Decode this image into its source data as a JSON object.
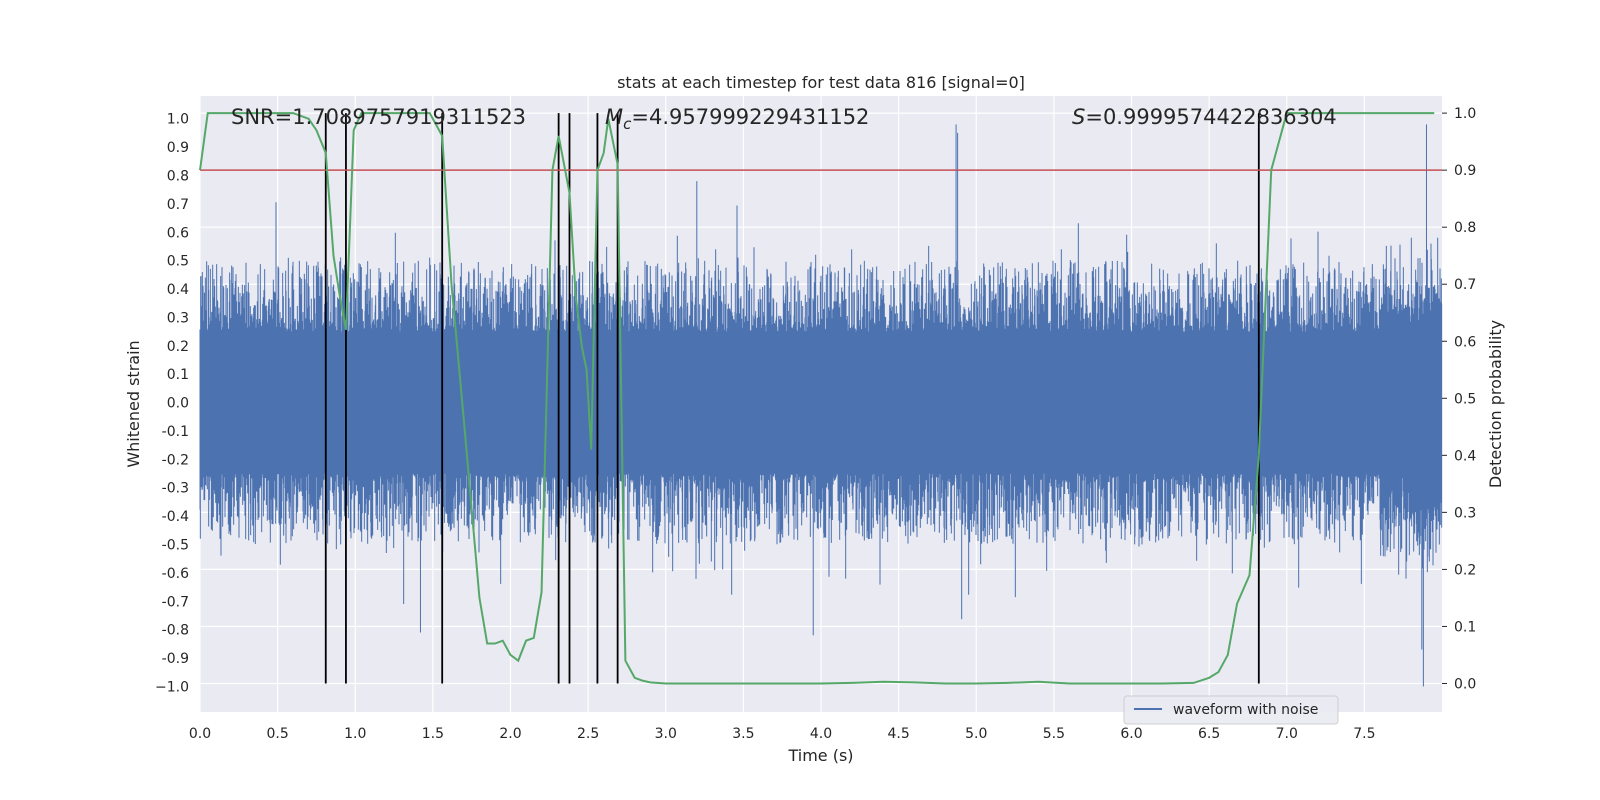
{
  "chart_data": {
    "type": "line",
    "title": "stats at each timestep for test data 816 [signal=0]",
    "xlabel": "Time (s)",
    "ylabel": "Whitened strain",
    "y2label": "Detection probability",
    "xlim": [
      0.0,
      8.0
    ],
    "ylim": [
      -1.09,
      1.08
    ],
    "y2lim": [
      -0.05,
      1.03
    ],
    "xticks": [
      "0.0",
      "0.5",
      "1.0",
      "1.5",
      "2.0",
      "2.5",
      "3.0",
      "3.5",
      "4.0",
      "4.5",
      "5.0",
      "5.5",
      "6.0",
      "6.5",
      "7.0",
      "7.5"
    ],
    "yticks": [
      "1.0",
      "0.9",
      "0.8",
      "0.7",
      "0.6",
      "0.5",
      "0.4",
      "0.3",
      "0.2",
      "0.1",
      "0.0",
      "-0.1",
      "-0.2",
      "-0.3",
      "-0.4",
      "-0.5",
      "-0.6",
      "-0.7",
      "-0.8",
      "-0.9",
      "−1.0"
    ],
    "y2ticks": [
      "1.0",
      "0.9",
      "0.8",
      "0.7",
      "0.6",
      "0.5",
      "0.4",
      "0.3",
      "0.2",
      "0.1",
      "0.0"
    ],
    "grid": true,
    "annotations": {
      "snr": "SNR=1.7089757919311523",
      "mc_symbol": "M",
      "mc_sub": "c",
      "mc_value": "=4.957999229431152",
      "s_symbol": "S",
      "s_value": "=0.9999574422836304"
    },
    "legend": {
      "label": "waveform with noise",
      "position": "bottom-right"
    },
    "threshold": {
      "y": 0.9,
      "axis": "right",
      "color": "#c44e52"
    },
    "vlines": [
      0.81,
      0.94,
      1.56,
      2.31,
      2.38,
      2.56,
      2.69,
      6.82
    ],
    "waveform": {
      "name": "waveform with noise",
      "color": "#4c72b0",
      "duration": 8.0,
      "core_amplitude": 0.25,
      "typical_peak": 0.5,
      "max_peak": 0.98,
      "min_peak": -1.0
    },
    "probability": {
      "name": "detection probability",
      "color": "#55a868",
      "x": [
        0.0,
        0.05,
        0.1,
        0.2,
        0.3,
        0.4,
        0.5,
        0.6,
        0.7,
        0.75,
        0.81,
        0.86,
        0.9,
        0.94,
        0.99,
        1.04,
        1.1,
        1.2,
        1.3,
        1.4,
        1.48,
        1.56,
        1.62,
        1.7,
        1.8,
        1.85,
        1.9,
        1.95,
        2.0,
        2.05,
        2.1,
        2.15,
        2.2,
        2.27,
        2.31,
        2.38,
        2.42,
        2.46,
        2.49,
        2.52,
        2.56,
        2.6,
        2.63,
        2.69,
        2.74,
        2.8,
        2.85,
        2.9,
        3.0,
        3.5,
        4.0,
        4.2,
        4.4,
        4.6,
        4.8,
        5.0,
        5.2,
        5.4,
        5.6,
        5.8,
        6.0,
        6.2,
        6.4,
        6.5,
        6.56,
        6.62,
        6.68,
        6.76,
        6.82,
        6.9,
        7.0,
        7.5,
        7.95
      ],
      "y": [
        0.9,
        1.0,
        1.0,
        1.0,
        1.0,
        1.0,
        1.0,
        1.0,
        0.99,
        0.97,
        0.93,
        0.75,
        0.68,
        0.62,
        0.97,
        1.0,
        1.0,
        1.0,
        1.0,
        1.0,
        1.0,
        0.96,
        0.7,
        0.46,
        0.15,
        0.07,
        0.07,
        0.075,
        0.05,
        0.04,
        0.075,
        0.08,
        0.16,
        0.9,
        0.96,
        0.86,
        0.68,
        0.59,
        0.55,
        0.41,
        0.9,
        0.93,
        0.99,
        0.91,
        0.04,
        0.01,
        0.005,
        0.002,
        0.0,
        0.0,
        0.0,
        0.001,
        0.003,
        0.002,
        0.0,
        0.0,
        0.001,
        0.003,
        0.0,
        0.0,
        0.0,
        0.0,
        0.001,
        0.01,
        0.02,
        0.05,
        0.14,
        0.19,
        0.4,
        0.9,
        1.0,
        1.0,
        1.0
      ]
    }
  }
}
